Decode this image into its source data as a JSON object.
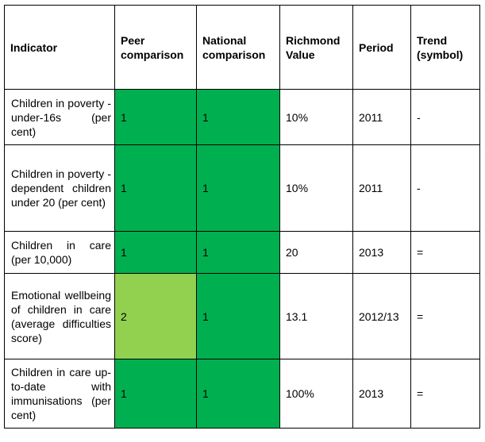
{
  "table": {
    "headers": [
      "Indicator",
      "Peer comparison",
      "National comparison",
      "Richmond Value",
      "Period",
      "Trend (symbol)"
    ],
    "rows": [
      {
        "indicator": "Children in poverty - under-16s (per cent)",
        "peer": "1",
        "national": "1",
        "value": "10%",
        "period": "2011",
        "trend": "-",
        "peer_color": "#00b050",
        "national_color": "#00b050"
      },
      {
        "indicator": "Children in poverty - dependent children under 20 (per cent)",
        "peer": "1",
        "national": "1",
        "value": "10%",
        "period": "2011",
        "trend": "-",
        "peer_color": "#00b050",
        "national_color": "#00b050"
      },
      {
        "indicator": "Children in care (per 10,000)",
        "peer": "1",
        "national": "1",
        "value": "20",
        "period": "2013",
        "trend": "=",
        "peer_color": "#00b050",
        "national_color": "#00b050"
      },
      {
        "indicator": "Emotional wellbeing of children in care (average difficulties score)",
        "peer": "2",
        "national": "1",
        "value": "13.1",
        "period": "2012/13",
        "trend": "=",
        "peer_color": "#92d050",
        "national_color": "#00b050"
      },
      {
        "indicator": "Children in care up-to-date with immunisations (per cent)",
        "peer": "1",
        "national": "1",
        "value": "100%",
        "period": "2013",
        "trend": "=",
        "peer_color": "#00b050",
        "national_color": "#00b050"
      }
    ]
  }
}
